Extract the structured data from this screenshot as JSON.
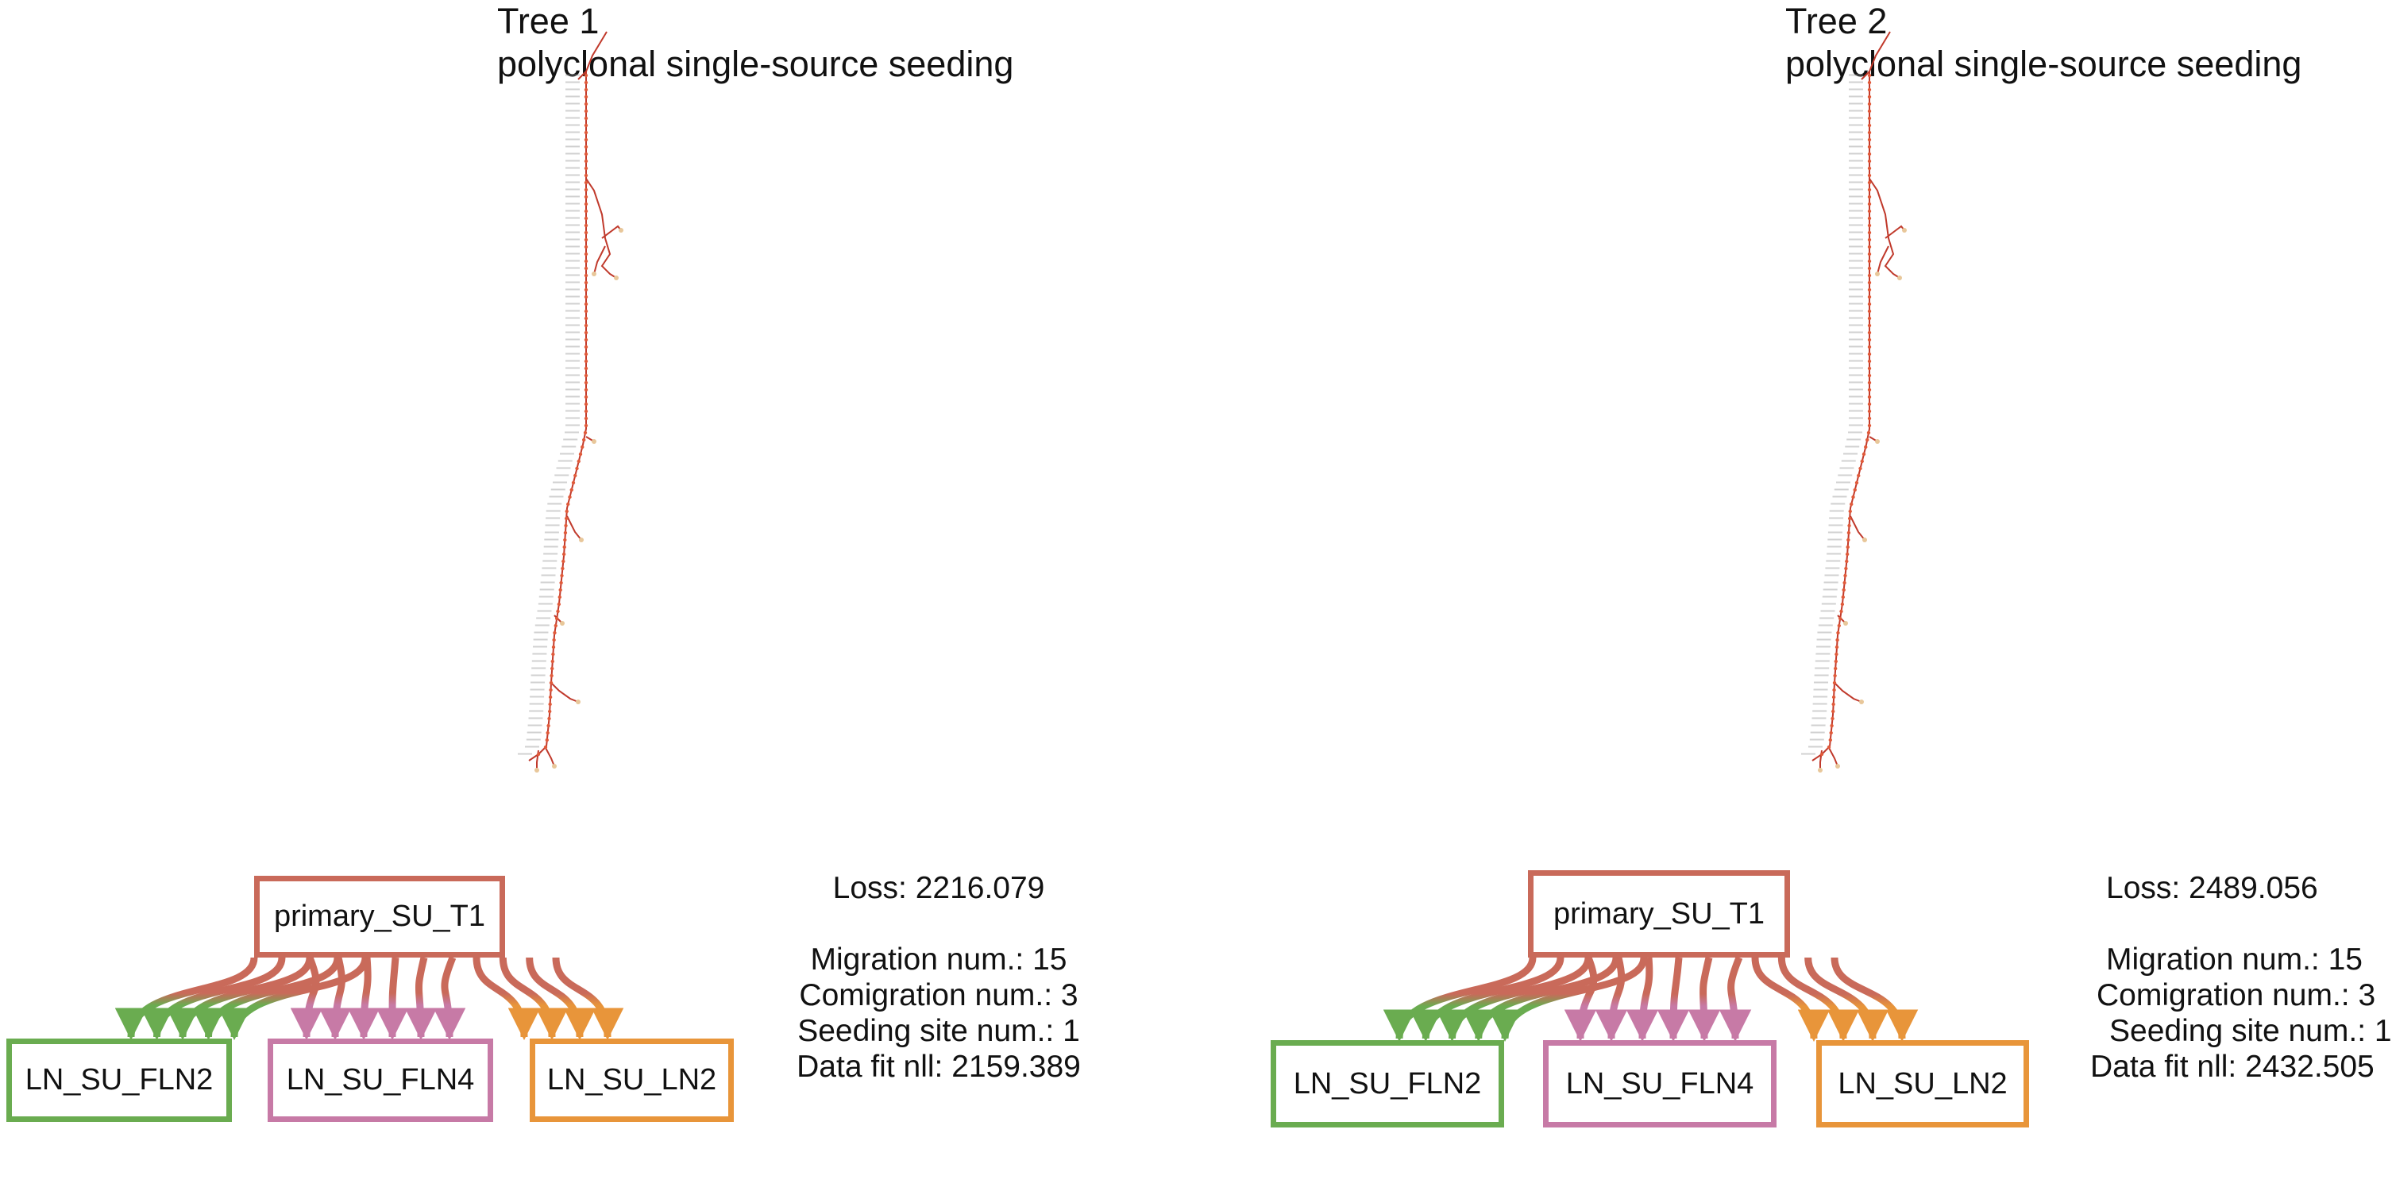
{
  "panels": [
    {
      "title_line1": "Tree 1",
      "title_line2": "polyclonal single-source seeding",
      "graph": {
        "source": {
          "label": "primary_SU_T1",
          "color": "#c96a5a"
        },
        "targets": [
          {
            "label": "LN_SU_FLN2",
            "color": "#6aac50"
          },
          {
            "label": "LN_SU_FLN4",
            "color": "#c77aa6"
          },
          {
            "label": "LN_SU_LN2",
            "color": "#e8953a"
          }
        ],
        "edge_counts": [
          5,
          6,
          4
        ]
      },
      "stats": {
        "loss": "Loss: 2216.079",
        "migration": "Migration num.: 15",
        "comigration": "Comigration num.: 3",
        "seeding": "Seeding site num.: 1",
        "data_fit": "Data fit nll: 2159.389"
      }
    },
    {
      "title_line1": "Tree 2",
      "title_line2": "polyclonal single-source seeding",
      "graph": {
        "source": {
          "label": "primary_SU_T1",
          "color": "#c96a5a"
        },
        "targets": [
          {
            "label": "LN_SU_FLN2",
            "color": "#6aac50"
          },
          {
            "label": "LN_SU_FLN4",
            "color": "#c77aa6"
          },
          {
            "label": "LN_SU_LN2",
            "color": "#e8953a"
          }
        ],
        "edge_counts": [
          5,
          6,
          4
        ]
      },
      "stats": {
        "loss": "Loss: 2489.056",
        "migration": "Migration num.: 15",
        "comigration": "Comigration num.: 3",
        "seeding": "Seeding site num.: 1",
        "data_fit": "Data fit nll: 2432.505"
      }
    }
  ],
  "colors": {
    "tree_edge": "#c0392b",
    "tree_node": "#e05a3a",
    "tree_leaf": "#e8c79a",
    "label_gray": "#9a9a9a"
  }
}
